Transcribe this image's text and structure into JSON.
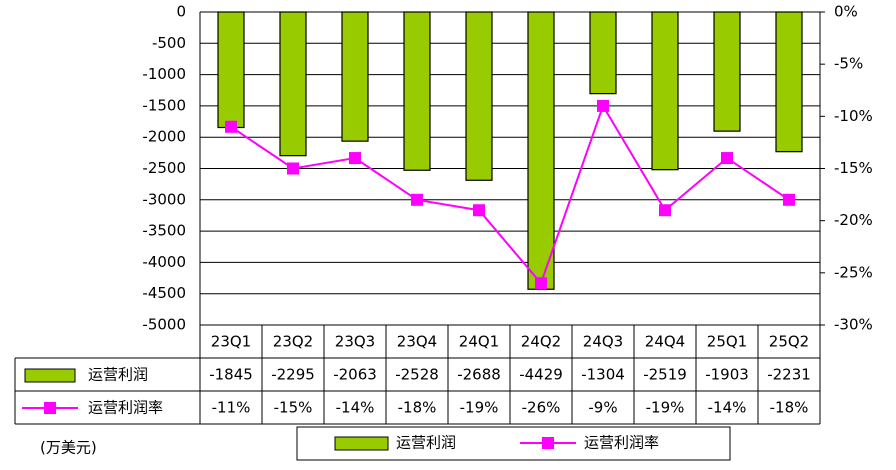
{
  "chart_data": {
    "type": "bar",
    "categories": [
      "23Q1",
      "23Q2",
      "23Q3",
      "23Q4",
      "24Q1",
      "24Q2",
      "24Q3",
      "24Q4",
      "25Q1",
      "25Q2"
    ],
    "series": [
      {
        "name": "运营利润",
        "color": "#99cc00",
        "values": [
          -1845,
          -2295,
          -2063,
          -2528,
          -2688,
          -4429,
          -1304,
          -2519,
          -1903,
          -2231
        ]
      },
      {
        "name": "运营利润率",
        "color": "#ff00ff",
        "type": "line",
        "axis": "y2",
        "values": [
          -11,
          -15,
          -14,
          -18,
          -19,
          -26,
          -9,
          -19,
          -14,
          -18
        ],
        "value_labels": [
          "-11%",
          "-15%",
          "-14%",
          "-18%",
          "-19%",
          "-26%",
          "-9%",
          "-19%",
          "-14%",
          "-18%"
        ]
      }
    ],
    "ylim": [
      -5000,
      0
    ],
    "yticks": [
      0,
      -500,
      -1000,
      -1500,
      -2000,
      -2500,
      -3000,
      -3500,
      -4000,
      -4500,
      -5000
    ],
    "y2lim": [
      -30,
      0
    ],
    "y2ticks": [
      {
        "value": 0,
        "label": "0%"
      },
      {
        "value": -5,
        "label": "-5%"
      },
      {
        "value": -10,
        "label": "-10%"
      },
      {
        "value": -15,
        "label": "-15%"
      },
      {
        "value": -20,
        "label": "-20%"
      },
      {
        "value": -25,
        "label": "-25%"
      },
      {
        "value": -30,
        "label": "-30%"
      }
    ],
    "unit_note": "(万美元)",
    "grid": true,
    "legend": "bottom"
  }
}
